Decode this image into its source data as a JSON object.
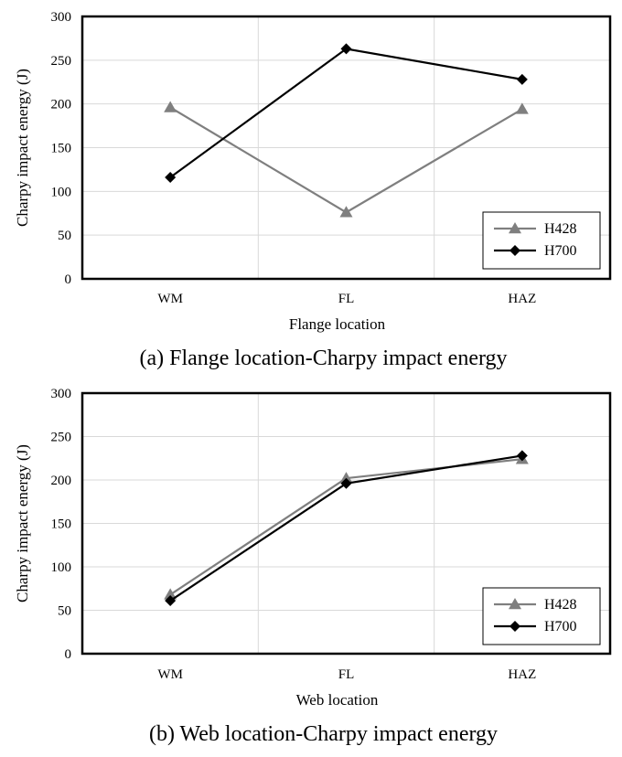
{
  "chart_data": [
    {
      "type": "line",
      "caption": "(a) Flange location-Charpy impact energy",
      "xlabel": "Flange location",
      "ylabel": "Charpy impact energy (J)",
      "categories": [
        "WM",
        "FL",
        "HAZ"
      ],
      "ylim": [
        0,
        300
      ],
      "yticks": [
        0,
        50,
        100,
        150,
        200,
        250,
        300
      ],
      "grid": true,
      "legend_position": "bottom-right",
      "series": [
        {
          "name": "H428",
          "values": [
            196,
            76,
            194
          ],
          "color": "#7f7f7f",
          "marker": "triangle"
        },
        {
          "name": "H700",
          "values": [
            116,
            263,
            228
          ],
          "color": "#000000",
          "marker": "diamond"
        }
      ]
    },
    {
      "type": "line",
      "caption": "(b) Web location-Charpy impact energy",
      "xlabel": "Web location",
      "ylabel": "Charpy impact energy (J)",
      "categories": [
        "WM",
        "FL",
        "HAZ"
      ],
      "ylim": [
        0,
        300
      ],
      "yticks": [
        0,
        50,
        100,
        150,
        200,
        250,
        300
      ],
      "grid": true,
      "legend_position": "bottom-right",
      "series": [
        {
          "name": "H428",
          "values": [
            68,
            202,
            224
          ],
          "color": "#7f7f7f",
          "marker": "triangle"
        },
        {
          "name": "H700",
          "values": [
            61,
            196,
            228
          ],
          "color": "#000000",
          "marker": "diamond"
        }
      ]
    }
  ]
}
